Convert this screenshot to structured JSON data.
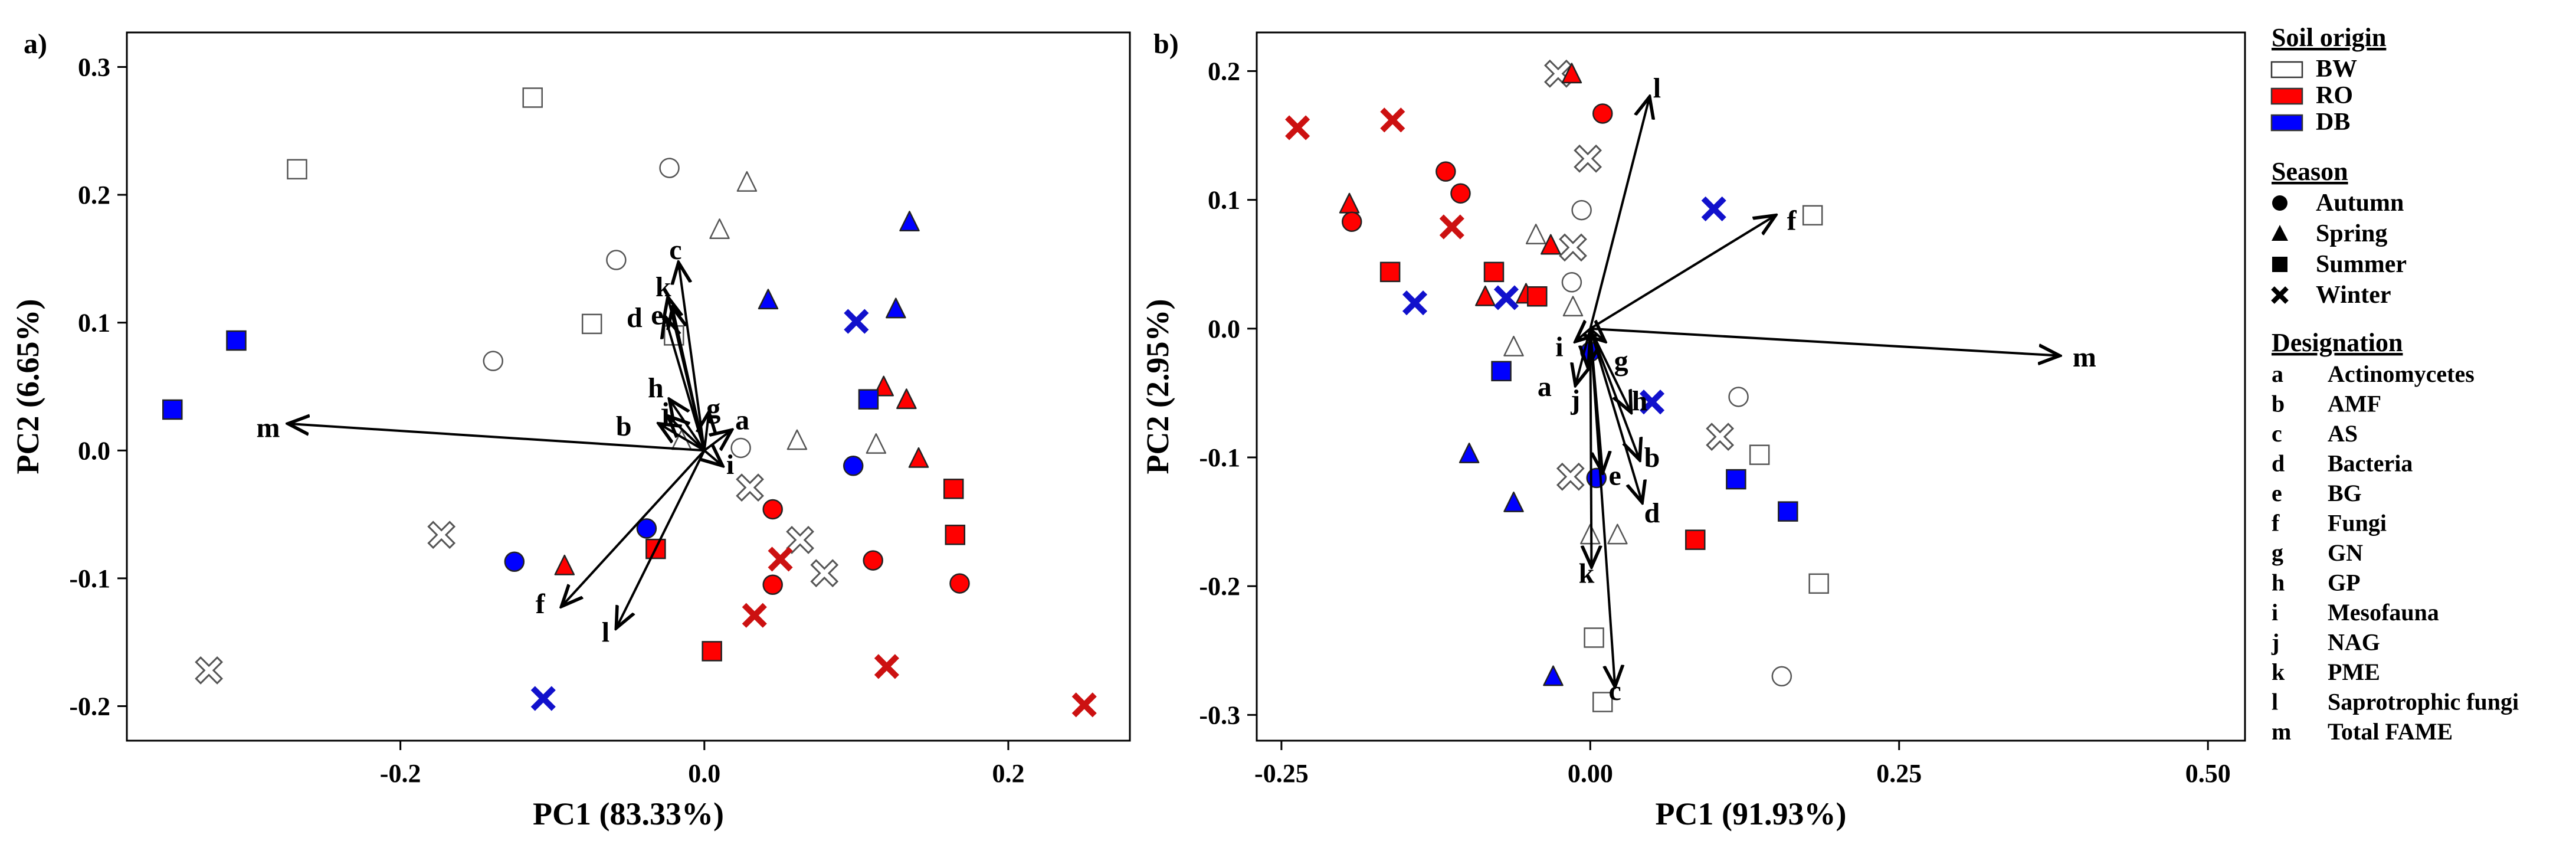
{
  "chart_data": [
    {
      "type": "scatter",
      "panel_label": "a)",
      "xlabel": "PC1 (83.33%)",
      "ylabel": "PC2 (6.65%)",
      "xlim": [
        -0.38,
        0.28
      ],
      "ylim": [
        -0.227,
        0.327
      ],
      "xticks": [
        -0.2,
        0.0,
        0.2
      ],
      "xtick_labels": [
        "-0.2",
        "0.0",
        "0.2"
      ],
      "yticks": [
        -0.2,
        -0.1,
        0.0,
        0.1,
        0.2,
        0.3
      ],
      "ytick_labels": [
        "-0.2",
        "-0.1",
        "0.0",
        "0.1",
        "0.2",
        "0.3"
      ],
      "points": [
        {
          "soil": "BW",
          "season": "Summer",
          "x": -0.113,
          "y": 0.276
        },
        {
          "soil": "BW",
          "season": "Summer",
          "x": -0.268,
          "y": 0.22
        },
        {
          "soil": "BW",
          "season": "Summer",
          "x": -0.074,
          "y": 0.099
        },
        {
          "soil": "BW",
          "season": "Summer",
          "x": -0.02,
          "y": 0.09
        },
        {
          "soil": "BW",
          "season": "Autumn",
          "x": -0.023,
          "y": 0.221
        },
        {
          "soil": "BW",
          "season": "Autumn",
          "x": -0.058,
          "y": 0.149
        },
        {
          "soil": "BW",
          "season": "Autumn",
          "x": -0.139,
          "y": 0.07
        },
        {
          "soil": "BW",
          "season": "Autumn",
          "x": 0.024,
          "y": 0.002
        },
        {
          "soil": "BW",
          "season": "Spring",
          "x": 0.028,
          "y": 0.21
        },
        {
          "soil": "BW",
          "season": "Spring",
          "x": 0.01,
          "y": 0.173
        },
        {
          "soil": "BW",
          "season": "Spring",
          "x": 0.061,
          "y": 0.008
        },
        {
          "soil": "BW",
          "season": "Spring",
          "x": 0.113,
          "y": 0.005
        },
        {
          "soil": "BW",
          "season": "Spring",
          "x": -0.015,
          "y": 0.008
        },
        {
          "soil": "BW",
          "season": "Winter",
          "x": 0.03,
          "y": -0.029
        },
        {
          "soil": "BW",
          "season": "Winter",
          "x": 0.063,
          "y": -0.07
        },
        {
          "soil": "BW",
          "season": "Winter",
          "x": 0.079,
          "y": -0.096
        },
        {
          "soil": "BW",
          "season": "Winter",
          "x": -0.173,
          "y": -0.066
        },
        {
          "soil": "BW",
          "season": "Winter",
          "x": -0.326,
          "y": -0.172
        },
        {
          "soil": "RO",
          "season": "Spring",
          "x": 0.118,
          "y": 0.05
        },
        {
          "soil": "RO",
          "season": "Spring",
          "x": 0.133,
          "y": 0.04
        },
        {
          "soil": "RO",
          "season": "Spring",
          "x": 0.141,
          "y": -0.006
        },
        {
          "soil": "RO",
          "season": "Spring",
          "x": -0.092,
          "y": -0.09
        },
        {
          "soil": "RO",
          "season": "Summer",
          "x": 0.164,
          "y": -0.03
        },
        {
          "soil": "RO",
          "season": "Summer",
          "x": 0.165,
          "y": -0.066
        },
        {
          "soil": "RO",
          "season": "Summer",
          "x": -0.032,
          "y": -0.077
        },
        {
          "soil": "RO",
          "season": "Summer",
          "x": 0.005,
          "y": -0.157
        },
        {
          "soil": "RO",
          "season": "Autumn",
          "x": 0.045,
          "y": -0.046
        },
        {
          "soil": "RO",
          "season": "Autumn",
          "x": 0.045,
          "y": -0.105
        },
        {
          "soil": "RO",
          "season": "Autumn",
          "x": 0.111,
          "y": -0.086
        },
        {
          "soil": "RO",
          "season": "Autumn",
          "x": 0.168,
          "y": -0.104
        },
        {
          "soil": "RO",
          "season": "Winter",
          "x": 0.05,
          "y": -0.085
        },
        {
          "soil": "RO",
          "season": "Winter",
          "x": 0.033,
          "y": -0.129
        },
        {
          "soil": "RO",
          "season": "Winter",
          "x": 0.12,
          "y": -0.169
        },
        {
          "soil": "RO",
          "season": "Winter",
          "x": 0.25,
          "y": -0.199
        },
        {
          "soil": "DB",
          "season": "Spring",
          "x": 0.135,
          "y": 0.179
        },
        {
          "soil": "DB",
          "season": "Spring",
          "x": 0.126,
          "y": 0.111
        },
        {
          "soil": "DB",
          "season": "Spring",
          "x": 0.042,
          "y": 0.118
        },
        {
          "soil": "DB",
          "season": "Summer",
          "x": -0.308,
          "y": 0.086
        },
        {
          "soil": "DB",
          "season": "Summer",
          "x": -0.35,
          "y": 0.032
        },
        {
          "soil": "DB",
          "season": "Summer",
          "x": 0.108,
          "y": 0.04
        },
        {
          "soil": "DB",
          "season": "Autumn",
          "x": 0.098,
          "y": -0.012
        },
        {
          "soil": "DB",
          "season": "Autumn",
          "x": -0.038,
          "y": -0.061
        },
        {
          "soil": "DB",
          "season": "Autumn",
          "x": -0.125,
          "y": -0.087
        },
        {
          "soil": "DB",
          "season": "Winter",
          "x": 0.1,
          "y": 0.101
        },
        {
          "soil": "DB",
          "season": "Winter",
          "x": -0.106,
          "y": -0.194
        }
      ],
      "loadings": [
        {
          "label": "a",
          "x": 0.018,
          "y": 0.016,
          "lx": 0.025,
          "ly": 0.024
        },
        {
          "label": "b",
          "x": -0.03,
          "y": 0.021,
          "lx": -0.053,
          "ly": 0.019
        },
        {
          "label": "c",
          "x": -0.017,
          "y": 0.147,
          "lx": -0.019,
          "ly": 0.157
        },
        {
          "label": "d",
          "x": -0.026,
          "y": 0.105,
          "lx": -0.046,
          "ly": 0.104
        },
        {
          "label": "e",
          "x": -0.021,
          "y": 0.112,
          "lx": -0.031,
          "ly": 0.106
        },
        {
          "label": "f",
          "x": -0.094,
          "y": -0.122,
          "lx": -0.108,
          "ly": -0.12
        },
        {
          "label": "g",
          "x": 0.003,
          "y": 0.03,
          "lx": 0.006,
          "ly": 0.033
        },
        {
          "label": "h",
          "x": -0.023,
          "y": 0.04,
          "lx": -0.032,
          "ly": 0.049
        },
        {
          "label": "i",
          "x": 0.012,
          "y": -0.012,
          "lx": 0.017,
          "ly": -0.011
        },
        {
          "label": "j",
          "x": -0.024,
          "y": 0.027,
          "lx": -0.026,
          "ly": 0.03
        },
        {
          "label": "k",
          "x": -0.024,
          "y": 0.12,
          "lx": -0.027,
          "ly": 0.128
        },
        {
          "label": "l",
          "x": -0.058,
          "y": -0.139,
          "lx": -0.065,
          "ly": -0.142
        },
        {
          "label": "m",
          "x": -0.274,
          "y": 0.021,
          "lx": -0.287,
          "ly": 0.018
        }
      ]
    },
    {
      "type": "scatter",
      "panel_label": "b)",
      "xlabel": "PC1 (91.93%)",
      "ylabel": "PC2 (2.95%)",
      "xlim": [
        -0.27,
        0.53
      ],
      "ylim": [
        -0.32,
        0.23
      ],
      "xticks": [
        -0.25,
        0.0,
        0.25,
        0.5
      ],
      "xtick_labels": [
        "-0.25",
        "0.00",
        "0.25",
        "0.50"
      ],
      "yticks": [
        -0.3,
        -0.2,
        -0.1,
        0.0,
        0.1,
        0.2
      ],
      "ytick_labels": [
        "-0.3",
        "-0.2",
        "-0.1",
        "0.0",
        "0.1",
        "0.2"
      ],
      "points": [
        {
          "soil": "BW",
          "season": "Winter",
          "x": -0.026,
          "y": 0.198
        },
        {
          "soil": "BW",
          "season": "Winter",
          "x": -0.002,
          "y": 0.132
        },
        {
          "soil": "BW",
          "season": "Winter",
          "x": -0.014,
          "y": 0.063
        },
        {
          "soil": "BW",
          "season": "Winter",
          "x": 0.105,
          "y": -0.084
        },
        {
          "soil": "BW",
          "season": "Winter",
          "x": -0.016,
          "y": -0.115
        },
        {
          "soil": "BW",
          "season": "Autumn",
          "x": -0.007,
          "y": 0.092
        },
        {
          "soil": "BW",
          "season": "Autumn",
          "x": -0.015,
          "y": 0.036
        },
        {
          "soil": "BW",
          "season": "Autumn",
          "x": 0.12,
          "y": -0.053
        },
        {
          "soil": "BW",
          "season": "Autumn",
          "x": 0.155,
          "y": -0.27
        },
        {
          "soil": "BW",
          "season": "Spring",
          "x": -0.044,
          "y": 0.073
        },
        {
          "soil": "BW",
          "season": "Spring",
          "x": -0.014,
          "y": 0.017
        },
        {
          "soil": "BW",
          "season": "Spring",
          "x": -0.062,
          "y": -0.014
        },
        {
          "soil": "BW",
          "season": "Spring",
          "x": 0.0,
          "y": -0.16
        },
        {
          "soil": "BW",
          "season": "Spring",
          "x": 0.022,
          "y": -0.16
        },
        {
          "soil": "BW",
          "season": "Summer",
          "x": 0.18,
          "y": 0.088
        },
        {
          "soil": "BW",
          "season": "Summer",
          "x": 0.137,
          "y": -0.098
        },
        {
          "soil": "BW",
          "season": "Summer",
          "x": 0.185,
          "y": -0.198
        },
        {
          "soil": "BW",
          "season": "Summer",
          "x": 0.003,
          "y": -0.24
        },
        {
          "soil": "BW",
          "season": "Summer",
          "x": 0.01,
          "y": -0.29
        },
        {
          "soil": "RO",
          "season": "Spring",
          "x": -0.015,
          "y": 0.198
        },
        {
          "soil": "RO",
          "season": "Spring",
          "x": -0.195,
          "y": 0.097
        },
        {
          "soil": "RO",
          "season": "Spring",
          "x": -0.032,
          "y": 0.065
        },
        {
          "soil": "RO",
          "season": "Spring",
          "x": -0.052,
          "y": 0.027
        },
        {
          "soil": "RO",
          "season": "Spring",
          "x": -0.085,
          "y": 0.025
        },
        {
          "soil": "RO",
          "season": "Autumn",
          "x": 0.01,
          "y": 0.167
        },
        {
          "soil": "RO",
          "season": "Autumn",
          "x": -0.117,
          "y": 0.122
        },
        {
          "soil": "RO",
          "season": "Autumn",
          "x": -0.105,
          "y": 0.105
        },
        {
          "soil": "RO",
          "season": "Autumn",
          "x": -0.193,
          "y": 0.083
        },
        {
          "soil": "RO",
          "season": "Winter",
          "x": -0.237,
          "y": 0.156
        },
        {
          "soil": "RO",
          "season": "Winter",
          "x": -0.16,
          "y": 0.162
        },
        {
          "soil": "RO",
          "season": "Winter",
          "x": -0.112,
          "y": 0.079
        },
        {
          "soil": "RO",
          "season": "Summer",
          "x": -0.162,
          "y": 0.044
        },
        {
          "soil": "RO",
          "season": "Summer",
          "x": -0.078,
          "y": 0.044
        },
        {
          "soil": "RO",
          "season": "Summer",
          "x": -0.043,
          "y": 0.025
        },
        {
          "soil": "RO",
          "season": "Summer",
          "x": 0.085,
          "y": -0.164
        },
        {
          "soil": "DB",
          "season": "Winter",
          "x": 0.1,
          "y": 0.093
        },
        {
          "soil": "DB",
          "season": "Winter",
          "x": -0.142,
          "y": 0.02
        },
        {
          "soil": "DB",
          "season": "Winter",
          "x": -0.068,
          "y": 0.024
        },
        {
          "soil": "DB",
          "season": "Winter",
          "x": 0.05,
          "y": -0.057
        },
        {
          "soil": "DB",
          "season": "Autumn",
          "x": 0.0,
          "y": -0.018
        },
        {
          "soil": "DB",
          "season": "Autumn",
          "x": 0.005,
          "y": -0.116
        },
        {
          "soil": "DB",
          "season": "Summer",
          "x": -0.072,
          "y": -0.033
        },
        {
          "soil": "DB",
          "season": "Summer",
          "x": 0.118,
          "y": -0.117
        },
        {
          "soil": "DB",
          "season": "Summer",
          "x": 0.16,
          "y": -0.142
        },
        {
          "soil": "DB",
          "season": "Spring",
          "x": -0.098,
          "y": -0.097
        },
        {
          "soil": "DB",
          "season": "Spring",
          "x": -0.062,
          "y": -0.135
        },
        {
          "soil": "DB",
          "season": "Spring",
          "x": -0.03,
          "y": -0.27
        }
      ],
      "loadings": [
        {
          "label": "a",
          "x": -0.012,
          "y": -0.044,
          "lx": -0.037,
          "ly": -0.045
        },
        {
          "label": "b",
          "x": 0.04,
          "y": -0.102,
          "lx": 0.05,
          "ly": -0.1
        },
        {
          "label": "c",
          "x": 0.02,
          "y": -0.278,
          "lx": 0.02,
          "ly": -0.281
        },
        {
          "label": "d",
          "x": 0.042,
          "y": -0.135,
          "lx": 0.05,
          "ly": -0.143
        },
        {
          "label": "e",
          "x": 0.01,
          "y": -0.112,
          "lx": 0.02,
          "ly": -0.114
        },
        {
          "label": "f",
          "x": 0.15,
          "y": 0.088,
          "lx": 0.163,
          "ly": 0.084
        },
        {
          "label": "g",
          "x": 0.012,
          "y": -0.01,
          "lx": 0.025,
          "ly": -0.025
        },
        {
          "label": "h",
          "x": 0.033,
          "y": -0.065,
          "lx": 0.04,
          "ly": -0.056
        },
        {
          "label": "i",
          "x": -0.012,
          "y": -0.01,
          "lx": -0.025,
          "ly": -0.014
        },
        {
          "label": "j",
          "x": -0.002,
          "y": -0.03,
          "lx": -0.012,
          "ly": -0.055
        },
        {
          "label": "k",
          "x": 0.001,
          "y": -0.185,
          "lx": -0.003,
          "ly": -0.19
        },
        {
          "label": "l",
          "x": 0.048,
          "y": 0.18,
          "lx": 0.054,
          "ly": 0.187
        },
        {
          "label": "m",
          "x": 0.38,
          "y": -0.021,
          "lx": 0.4,
          "ly": -0.022
        }
      ]
    }
  ],
  "legend": {
    "soil_title": "Soil origin",
    "soil": [
      {
        "label": "BW",
        "color": "#ffffff"
      },
      {
        "label": "RO",
        "color": "#ff0000"
      },
      {
        "label": "DB",
        "color": "#0000ff"
      }
    ],
    "season_title": "Season",
    "seasons": [
      {
        "label": "Autumn",
        "shape": "circle"
      },
      {
        "label": "Spring",
        "shape": "triangle"
      },
      {
        "label": "Summer",
        "shape": "square"
      },
      {
        "label": "Winter",
        "shape": "cross"
      }
    ],
    "designation_title": "Designation",
    "designations": [
      {
        "key": "a",
        "name": "Actinomycetes"
      },
      {
        "key": "b",
        "name": "AMF"
      },
      {
        "key": "c",
        "name": "AS"
      },
      {
        "key": "d",
        "name": "Bacteria"
      },
      {
        "key": "e",
        "name": "BG"
      },
      {
        "key": "f",
        "name": "Fungi"
      },
      {
        "key": "g",
        "name": "GN"
      },
      {
        "key": "h",
        "name": "GP"
      },
      {
        "key": "i",
        "name": "Mesofauna"
      },
      {
        "key": "j",
        "name": "NAG"
      },
      {
        "key": "k",
        "name": "PME"
      },
      {
        "key": "l",
        "name": "Saprotrophic fungi"
      },
      {
        "key": "m",
        "name": "Total FAME"
      }
    ]
  },
  "colors": {
    "BW": "#ffffff",
    "RO": "#ff0000",
    "DB": "#0000ff",
    "BW_stroke": "#555555",
    "RO_cross": "#cc1111",
    "DB_cross": "#1111cc"
  }
}
